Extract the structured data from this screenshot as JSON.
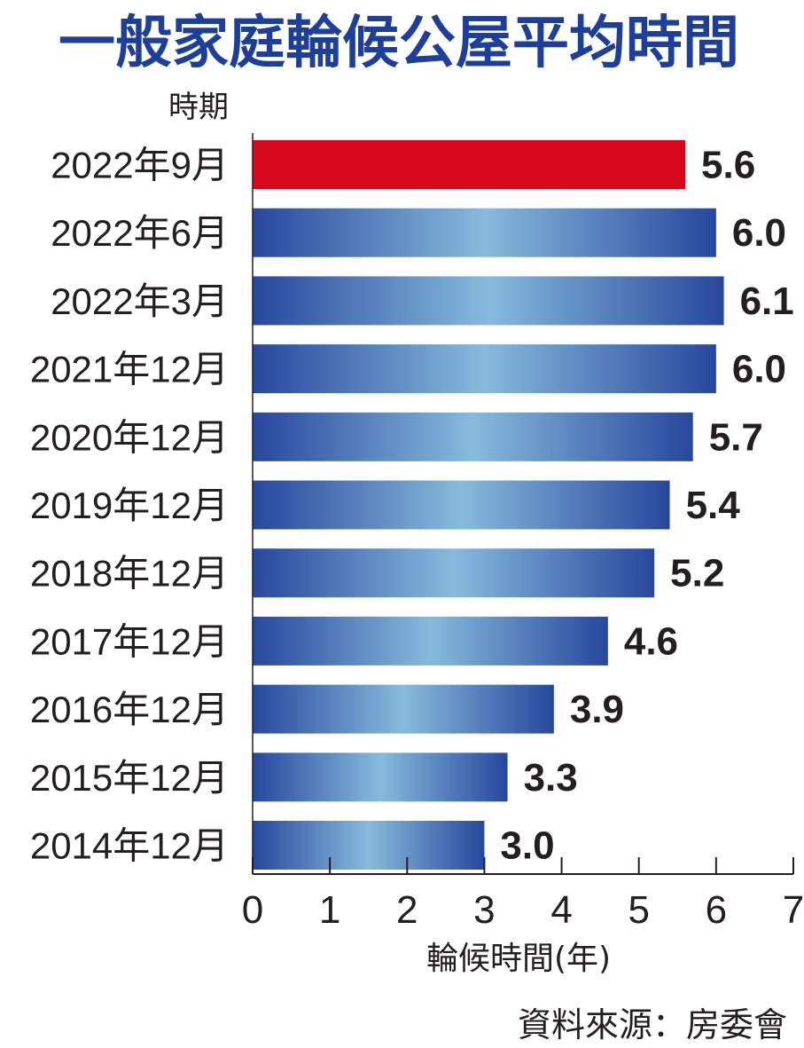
{
  "chart_data": {
    "type": "bar",
    "orientation": "horizontal",
    "title": "一般家庭輪候公屋平均時間",
    "ylabel": "時期",
    "xlabel": "輪候時間(年)",
    "categories": [
      "2022年9月",
      "2022年6月",
      "2022年3月",
      "2021年12月",
      "2020年12月",
      "2019年12月",
      "2018年12月",
      "2017年12月",
      "2016年12月",
      "2015年12月",
      "2014年12月"
    ],
    "values": [
      5.6,
      6.0,
      6.1,
      6.0,
      5.7,
      5.4,
      5.2,
      4.6,
      3.9,
      3.3,
      3.0
    ],
    "value_labels": [
      "5.6",
      "6.0",
      "6.1",
      "6.0",
      "5.7",
      "5.4",
      "5.2",
      "4.6",
      "3.9",
      "3.3",
      "3.0"
    ],
    "xticks": [
      "0",
      "1",
      "2",
      "3",
      "4",
      "5",
      "6",
      "7"
    ],
    "xlim": [
      0,
      7
    ],
    "grid": false,
    "source": "資料來源：房委會",
    "colors": {
      "highlight": "#d40a1b",
      "bar_edge": "#27479d",
      "bar_center": "#86bbdc",
      "title": "#1d3f9a",
      "text": "#231f20"
    }
  }
}
